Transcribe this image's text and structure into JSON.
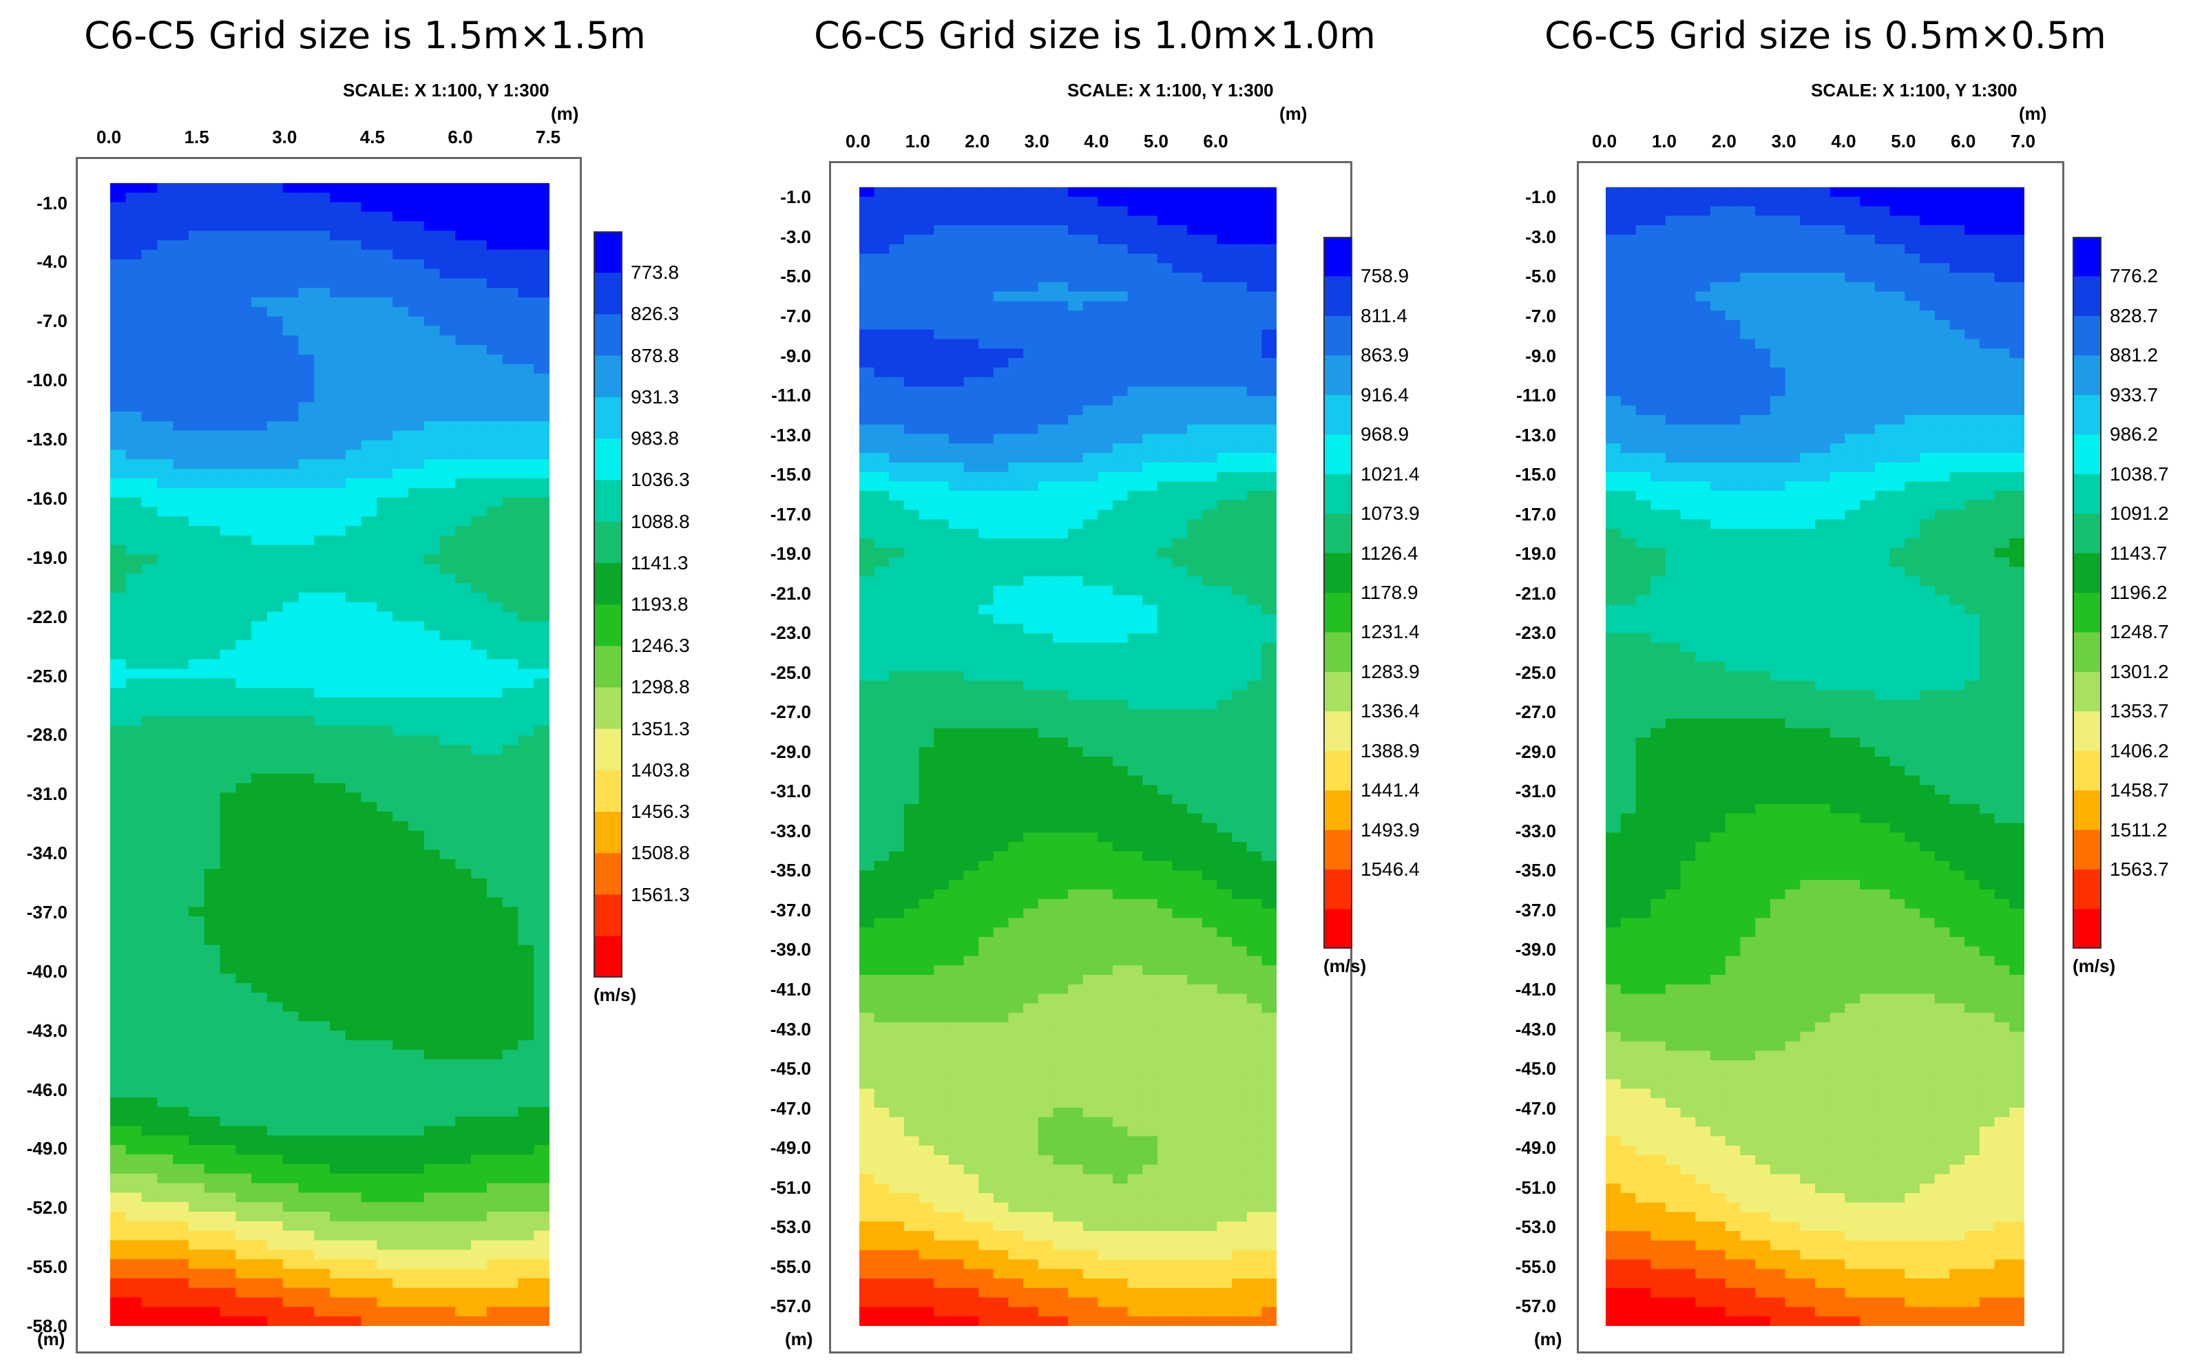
{
  "chart_data": [
    {
      "type": "heatmap",
      "title": "C6-C5 Grid size is 1.5m×1.5m",
      "scale": "SCALE: X 1:100, Y 1:300",
      "x_unit": "(m)",
      "y_unit": "(m)",
      "colorbar_unit": "(m/s)",
      "x_ticks": [
        "0.0",
        "1.5",
        "3.0",
        "4.5",
        "6.0",
        "7.5"
      ],
      "x_range": [
        0.0,
        7.5
      ],
      "y_ticks": [
        "-1.0",
        "-4.0",
        "-7.0",
        "-10.0",
        "-13.0",
        "-16.0",
        "-19.0",
        "-22.0",
        "-25.0",
        "-28.0",
        "-31.0",
        "-34.0",
        "-37.0",
        "-40.0",
        "-43.0",
        "-46.0",
        "-49.0",
        "-52.0",
        "-55.0",
        "-58.0"
      ],
      "y_range": [
        0.0,
        -58.0
      ],
      "colorbar_levels": [
        "773.8",
        "826.3",
        "878.8",
        "931.3",
        "983.8",
        "1036.3",
        "1088.8",
        "1141.3",
        "1193.8",
        "1246.3",
        "1298.8",
        "1351.3",
        "1403.8",
        "1456.3",
        "1508.8",
        "1561.3"
      ],
      "profile": [
        {
          "depth": 0,
          "v": 760
        },
        {
          "depth": -3,
          "v": 830
        },
        {
          "depth": -6,
          "v": 880
        },
        {
          "depth": -10,
          "v": 895
        },
        {
          "depth": -12,
          "v": 915
        },
        {
          "depth": -14,
          "v": 960
        },
        {
          "depth": -16,
          "v": 1040
        },
        {
          "depth": -19,
          "v": 1080
        },
        {
          "depth": -22,
          "v": 1050
        },
        {
          "depth": -25,
          "v": 1010
        },
        {
          "depth": -28,
          "v": 1080
        },
        {
          "depth": -31,
          "v": 1090
        },
        {
          "depth": -34,
          "v": 1100
        },
        {
          "depth": -37,
          "v": 1120
        },
        {
          "depth": -40,
          "v": 1120
        },
        {
          "depth": -43,
          "v": 1110
        },
        {
          "depth": -46,
          "v": 1090
        },
        {
          "depth": -48,
          "v": 1140
        },
        {
          "depth": -50,
          "v": 1210
        },
        {
          "depth": -52,
          "v": 1290
        },
        {
          "depth": -54,
          "v": 1380
        },
        {
          "depth": -56,
          "v": 1480
        },
        {
          "depth": -58,
          "v": 1560
        }
      ]
    },
    {
      "type": "heatmap",
      "title": "C6-C5 Grid size is 1.0m×1.0m",
      "scale": "SCALE: X 1:100, Y 1:300",
      "x_unit": "(m)",
      "y_unit": "(m)",
      "colorbar_unit": "(m/s)",
      "x_ticks": [
        "0.0",
        "1.0",
        "2.0",
        "3.0",
        "4.0",
        "5.0",
        "6.0"
      ],
      "x_range": [
        0.0,
        7.0
      ],
      "y_ticks": [
        "-1.0",
        "-3.0",
        "-5.0",
        "-7.0",
        "-9.0",
        "-11.0",
        "-13.0",
        "-15.0",
        "-17.0",
        "-19.0",
        "-21.0",
        "-23.0",
        "-25.0",
        "-27.0",
        "-29.0",
        "-31.0",
        "-33.0",
        "-35.0",
        "-37.0",
        "-39.0",
        "-41.0",
        "-43.0",
        "-45.0",
        "-47.0",
        "-49.0",
        "-51.0",
        "-53.0",
        "-55.0",
        "-57.0"
      ],
      "y_range": [
        -0.5,
        -58.0
      ],
      "colorbar_levels": [
        "758.9",
        "811.4",
        "863.9",
        "916.4",
        "968.9",
        "1021.4",
        "1073.9",
        "1126.4",
        "1178.9",
        "1231.4",
        "1283.9",
        "1336.4",
        "1388.9",
        "1441.4",
        "1493.9",
        "1546.4"
      ],
      "profile": [
        {
          "depth": 0,
          "v": 760
        },
        {
          "depth": -3,
          "v": 830
        },
        {
          "depth": -6,
          "v": 880
        },
        {
          "depth": -9,
          "v": 850
        },
        {
          "depth": -12,
          "v": 900
        },
        {
          "depth": -14,
          "v": 950
        },
        {
          "depth": -16,
          "v": 1040
        },
        {
          "depth": -19,
          "v": 1080
        },
        {
          "depth": -22,
          "v": 1040
        },
        {
          "depth": -25,
          "v": 1060
        },
        {
          "depth": -28,
          "v": 1100
        },
        {
          "depth": -31,
          "v": 1110
        },
        {
          "depth": -34,
          "v": 1130
        },
        {
          "depth": -37,
          "v": 1180
        },
        {
          "depth": -40,
          "v": 1220
        },
        {
          "depth": -43,
          "v": 1270
        },
        {
          "depth": -46,
          "v": 1280
        },
        {
          "depth": -49,
          "v": 1290
        },
        {
          "depth": -52,
          "v": 1330
        },
        {
          "depth": -54,
          "v": 1400
        },
        {
          "depth": -56,
          "v": 1480
        },
        {
          "depth": -58,
          "v": 1545
        }
      ]
    },
    {
      "type": "heatmap",
      "title": "C6-C5 Grid size is 0.5m×0.5m",
      "scale": "SCALE: X 1:100, Y 1:300",
      "x_unit": "(m)",
      "y_unit": "(m)",
      "colorbar_unit": "(m/s)",
      "x_ticks": [
        "0.0",
        "1.0",
        "2.0",
        "3.0",
        "4.0",
        "5.0",
        "6.0",
        "7.0"
      ],
      "x_range": [
        0.0,
        7.0
      ],
      "y_ticks": [
        "-1.0",
        "-3.0",
        "-5.0",
        "-7.0",
        "-9.0",
        "-11.0",
        "-13.0",
        "-15.0",
        "-17.0",
        "-19.0",
        "-21.0",
        "-23.0",
        "-25.0",
        "-27.0",
        "-29.0",
        "-31.0",
        "-33.0",
        "-35.0",
        "-37.0",
        "-39.0",
        "-41.0",
        "-43.0",
        "-45.0",
        "-47.0",
        "-49.0",
        "-51.0",
        "-53.0",
        "-55.0",
        "-57.0"
      ],
      "y_range": [
        -0.5,
        -58.0
      ],
      "colorbar_levels": [
        "776.2",
        "828.7",
        "881.2",
        "933.7",
        "986.2",
        "1038.7",
        "1091.2",
        "1143.7",
        "1196.2",
        "1248.7",
        "1301.2",
        "1353.7",
        "1406.2",
        "1458.7",
        "1511.2",
        "1563.7"
      ],
      "profile": [
        {
          "depth": 0,
          "v": 770
        },
        {
          "depth": -3,
          "v": 840
        },
        {
          "depth": -6,
          "v": 890
        },
        {
          "depth": -10,
          "v": 900
        },
        {
          "depth": -12,
          "v": 920
        },
        {
          "depth": -14,
          "v": 960
        },
        {
          "depth": -16,
          "v": 1040
        },
        {
          "depth": -19,
          "v": 1090
        },
        {
          "depth": -22,
          "v": 1060
        },
        {
          "depth": -25,
          "v": 1070
        },
        {
          "depth": -28,
          "v": 1110
        },
        {
          "depth": -31,
          "v": 1120
        },
        {
          "depth": -34,
          "v": 1150
        },
        {
          "depth": -37,
          "v": 1180
        },
        {
          "depth": -40,
          "v": 1210
        },
        {
          "depth": -43,
          "v": 1250
        },
        {
          "depth": -46,
          "v": 1290
        },
        {
          "depth": -49,
          "v": 1320
        },
        {
          "depth": -52,
          "v": 1370
        },
        {
          "depth": -54,
          "v": 1430
        },
        {
          "depth": -56,
          "v": 1500
        },
        {
          "depth": -58,
          "v": 1565
        }
      ]
    }
  ],
  "palette": [
    "#0000ff",
    "#0f3fe6",
    "#1a6fe8",
    "#1e9be8",
    "#14c8f0",
    "#00f0f0",
    "#00d0a8",
    "#14c070",
    "#0aa828",
    "#22c020",
    "#6cd040",
    "#a8e060",
    "#f0f078",
    "#ffe04c",
    "#ffb000",
    "#ff7000",
    "#ff3000",
    "#ff0000"
  ]
}
